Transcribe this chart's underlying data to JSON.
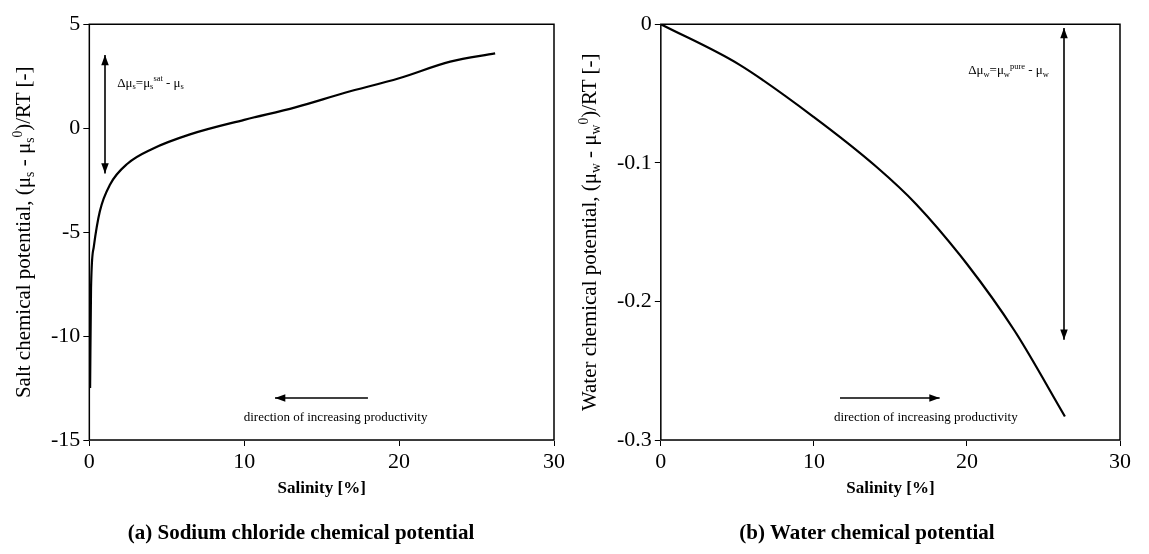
{
  "chart_data": [
    {
      "type": "line",
      "title": "(a) Sodium chloride chemical potential",
      "xlabel": "Salinity [%]",
      "ylabel": "Salt chemical potential, (μ$_{s}$ - μ$_{s}$$^{0}$)/RT [-]",
      "x": [
        0.05,
        0.11,
        0.29,
        0.68,
        1.35,
        2.48,
        4.06,
        6.5,
        10,
        13.3,
        16.5,
        20,
        23.3,
        26.2
      ],
      "values": [
        -12.5,
        -7.7,
        -5.7,
        -4.0,
        -2.7,
        -1.7,
        -1.0,
        -0.3,
        0.4,
        1.0,
        1.7,
        2.4,
        3.2,
        3.6
      ],
      "color": "#000000",
      "xlim": [
        0,
        30
      ],
      "ylim": [
        -15,
        5
      ],
      "xticks": [
        0,
        10,
        20,
        30
      ],
      "yticks": [
        -15,
        -10,
        -5,
        0,
        5
      ],
      "annotations": [
        "Δμ$_{s}$=μ$_{s}$$^{sat}$ - μ$_{s}$",
        "direction of increasing productivity"
      ]
    },
    {
      "type": "line",
      "title": "(b) Water chemical potential",
      "xlabel": "Salinity [%]",
      "ylabel": "Water chemical potential, (μ$_{w}$ - μ$_{w}$$^{0}$)/RT [-]",
      "x": [
        0,
        5.1,
        10,
        14.1,
        16.7,
        20,
        23.1,
        26.4
      ],
      "values": [
        0,
        -0.029,
        -0.067,
        -0.103,
        -0.13,
        -0.173,
        -0.221,
        -0.283
      ],
      "color": "#000000",
      "xlim": [
        0,
        30
      ],
      "ylim": [
        -0.3,
        0
      ],
      "xticks": [
        0,
        10,
        20,
        30
      ],
      "yticks": [
        -0.3,
        -0.2,
        -0.1,
        0
      ],
      "annotations": [
        "Δμ$_{w}$=μ$_{w}$$^{pure}$ - μ$_{w}$",
        "direction of increasing productivity"
      ]
    }
  ]
}
